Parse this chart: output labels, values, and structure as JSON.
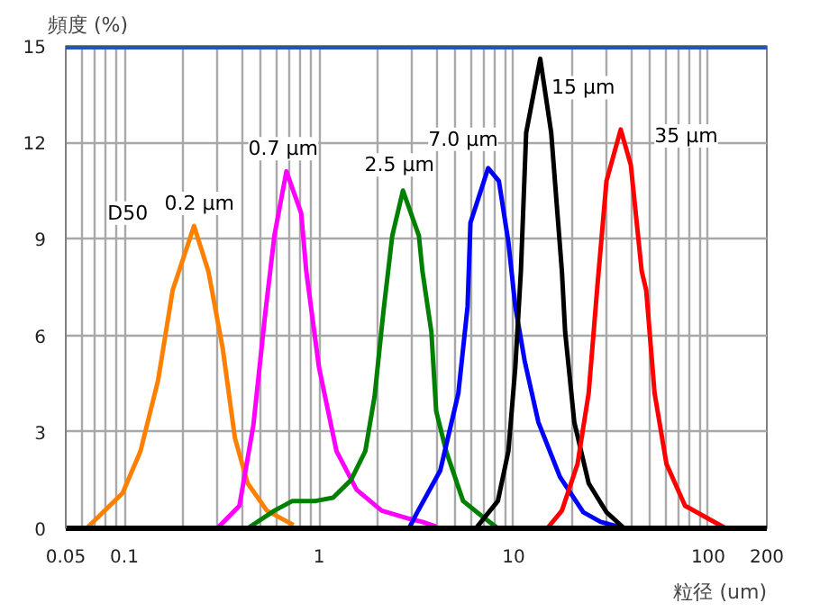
{
  "chart_data": {
    "type": "line",
    "ylabel": "頻度 (%)",
    "xlabel": "粒径 (um)",
    "log": "x",
    "grid": true,
    "xlim": [
      0.05,
      200
    ],
    "xticks": [
      0.05,
      {
        "value": 0.06,
        "label": null
      },
      {
        "value": 0.07,
        "label": null
      },
      {
        "value": 0.08,
        "label": null
      },
      {
        "value": 0.09,
        "label": null
      },
      0.1,
      {
        "value": 0.2,
        "label": null
      },
      {
        "value": 0.3,
        "label": null
      },
      {
        "value": 0.4,
        "label": null
      },
      {
        "value": 0.5,
        "label": null
      },
      {
        "value": 0.6,
        "label": null
      },
      {
        "value": 0.7,
        "label": null
      },
      {
        "value": 0.8,
        "label": null
      },
      {
        "value": 0.9,
        "label": null
      },
      1,
      {
        "value": 2,
        "label": null
      },
      {
        "value": 3,
        "label": null
      },
      {
        "value": 4,
        "label": null
      },
      {
        "value": 5,
        "label": null
      },
      {
        "value": 6,
        "label": null
      },
      {
        "value": 7,
        "label": null
      },
      {
        "value": 8,
        "label": null
      },
      {
        "value": 9,
        "label": null
      },
      10,
      {
        "value": 20,
        "label": null
      },
      {
        "value": 30,
        "label": null
      },
      {
        "value": 40,
        "label": null
      },
      {
        "value": 50,
        "label": null
      },
      {
        "value": 60,
        "label": null
      },
      {
        "value": 70,
        "label": null
      },
      {
        "value": 80,
        "label": null
      },
      {
        "value": 90,
        "label": null
      },
      100,
      200
    ],
    "ylim": [
      0,
      15
    ],
    "yticks": [
      0,
      3,
      6,
      9,
      12,
      15
    ],
    "ref_lines": [
      {
        "axis": "y",
        "value": 15,
        "color": "#2255bb"
      }
    ],
    "series": [
      {
        "color": "#ff8000",
        "x": [
          0.064,
          0.098,
          0.121,
          0.149,
          0.177,
          0.228,
          0.27,
          0.32,
          0.37,
          0.43,
          0.54,
          0.74
        ],
        "values": [
          0,
          1.1,
          2.4,
          4.6,
          7.4,
          9.4,
          8.0,
          5.6,
          2.8,
          1.4,
          0.55,
          0.1
        ]
      },
      {
        "color": "#ff00ff",
        "x": [
          0.3,
          0.39,
          0.46,
          0.53,
          0.59,
          0.68,
          0.81,
          0.86,
          1.0,
          1.23,
          1.56,
          2.1,
          2.9,
          3.4,
          4.0
        ],
        "values": [
          0,
          0.7,
          3.2,
          6.7,
          9.1,
          11.1,
          9.8,
          8.0,
          5.0,
          2.4,
          1.2,
          0.55,
          0.3,
          0.2,
          0.05
        ]
      },
      {
        "color": "#008000",
        "x": [
          0.43,
          0.59,
          0.73,
          0.96,
          1.18,
          1.46,
          1.73,
          1.93,
          2.14,
          2.38,
          2.7,
          3.26,
          3.4,
          3.78,
          4.0,
          4.5,
          5.5,
          6.8,
          8.3
        ],
        "values": [
          0,
          0.55,
          0.85,
          0.85,
          0.95,
          1.5,
          2.4,
          4.1,
          6.7,
          9.1,
          10.5,
          9.1,
          8.0,
          6.1,
          3.65,
          2.4,
          0.85,
          0.4,
          0
        ]
      },
      {
        "color": "#0000ff",
        "x": [
          2.9,
          3.2,
          4.2,
          5.2,
          5.8,
          6.0,
          7.4,
          8.4,
          9.4,
          10.2,
          11.4,
          13.4,
          17.3,
          22.8,
          28,
          37
        ],
        "values": [
          0,
          0.5,
          1.8,
          4.2,
          6.9,
          9.5,
          11.2,
          10.8,
          8.9,
          6.9,
          5.2,
          3.3,
          1.6,
          0.5,
          0.2,
          0
        ]
      },
      {
        "color": "#000000",
        "x": [
          6.4,
          8.3,
          9.4,
          10.2,
          10.9,
          11.6,
          13.7,
          15.6,
          17.7,
          18.4,
          20.5,
          24.3,
          30,
          37
        ],
        "values": [
          0,
          0.85,
          2.4,
          5.0,
          8.0,
          12.3,
          14.6,
          12.3,
          8.0,
          6.1,
          3.3,
          1.4,
          0.5,
          0
        ]
      },
      {
        "color": "#ff0000",
        "x": [
          14.9,
          17.7,
          21.3,
          24.3,
          27,
          30,
          35.5,
          40,
          45.5,
          48,
          53,
          61,
          76,
          100,
          123
        ],
        "values": [
          0,
          0.55,
          2.0,
          4.2,
          7.6,
          10.8,
          12.4,
          11.3,
          8.0,
          7.4,
          4.2,
          2.0,
          0.7,
          0.3,
          0
        ]
      }
    ],
    "annotations": [
      {
        "text": "D50",
        "x": 0.104,
        "y": 9.8
      },
      {
        "text": "0.2 μm",
        "x": 0.243,
        "y": 10.1
      },
      {
        "text": "0.7 μm",
        "x": 0.655,
        "y": 11.8
      },
      {
        "text": "2.5 μm",
        "x": 2.59,
        "y": 11.3
      },
      {
        "text": "7.0 μm",
        "x": 5.5,
        "y": 12.1
      },
      {
        "text": "15 μm",
        "x": 22.8,
        "y": 13.7
      },
      {
        "text": "35 μm",
        "x": 77,
        "y": 12.2
      }
    ]
  }
}
